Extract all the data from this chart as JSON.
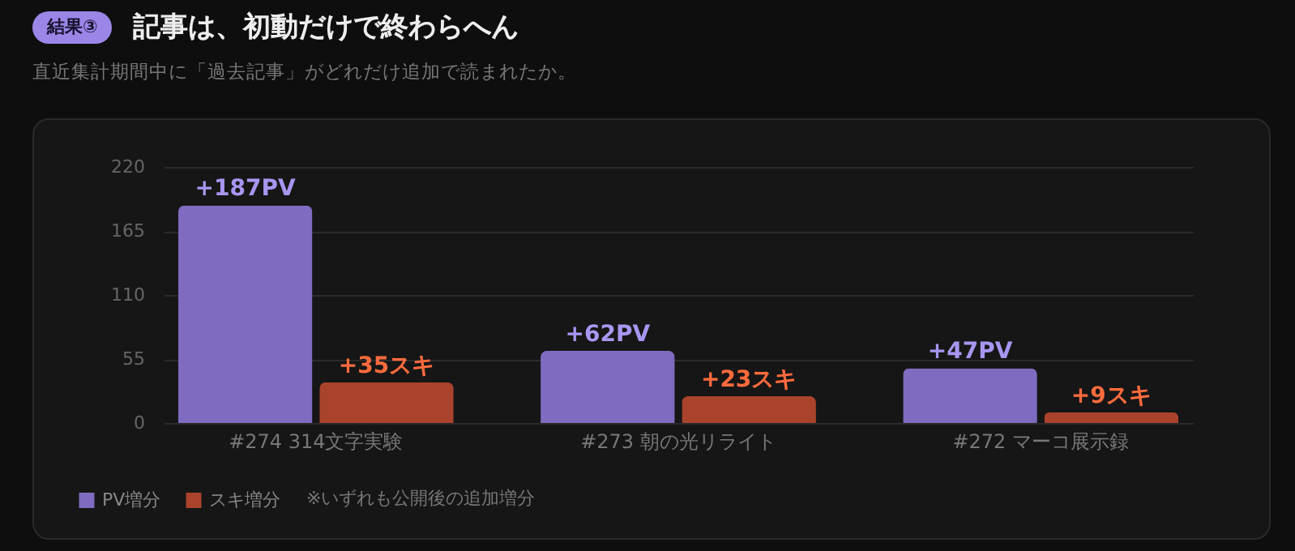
{
  "chart_data": {
    "type": "bar",
    "title": "記事は、初動だけで終わらへん",
    "subtitle": "直近集計期間中に「過去記事」がどれだけ追加で読まれたか。",
    "annotations": [
      "結果③",
      "※いずれも公開後の追加増分"
    ],
    "categories": [
      "#274 314文字実験",
      "#273 朝の光リライト",
      "#272 マーコ展示録"
    ],
    "series": [
      {
        "name": "PV増分",
        "color": "#7f6bbf",
        "values": [
          187,
          62,
          47
        ],
        "value_labels": [
          "+187PV",
          "+62PV",
          "+47PV"
        ]
      },
      {
        "name": "スキ増分",
        "color": "#a9432c",
        "values": [
          35,
          23,
          9
        ],
        "value_labels": [
          "+35スキ",
          "+23スキ",
          "+9スキ"
        ]
      }
    ],
    "ylim": [
      0,
      220
    ],
    "yticks": [
      0,
      55,
      110,
      165,
      220
    ],
    "grid": "y",
    "legend": "bottom left"
  }
}
